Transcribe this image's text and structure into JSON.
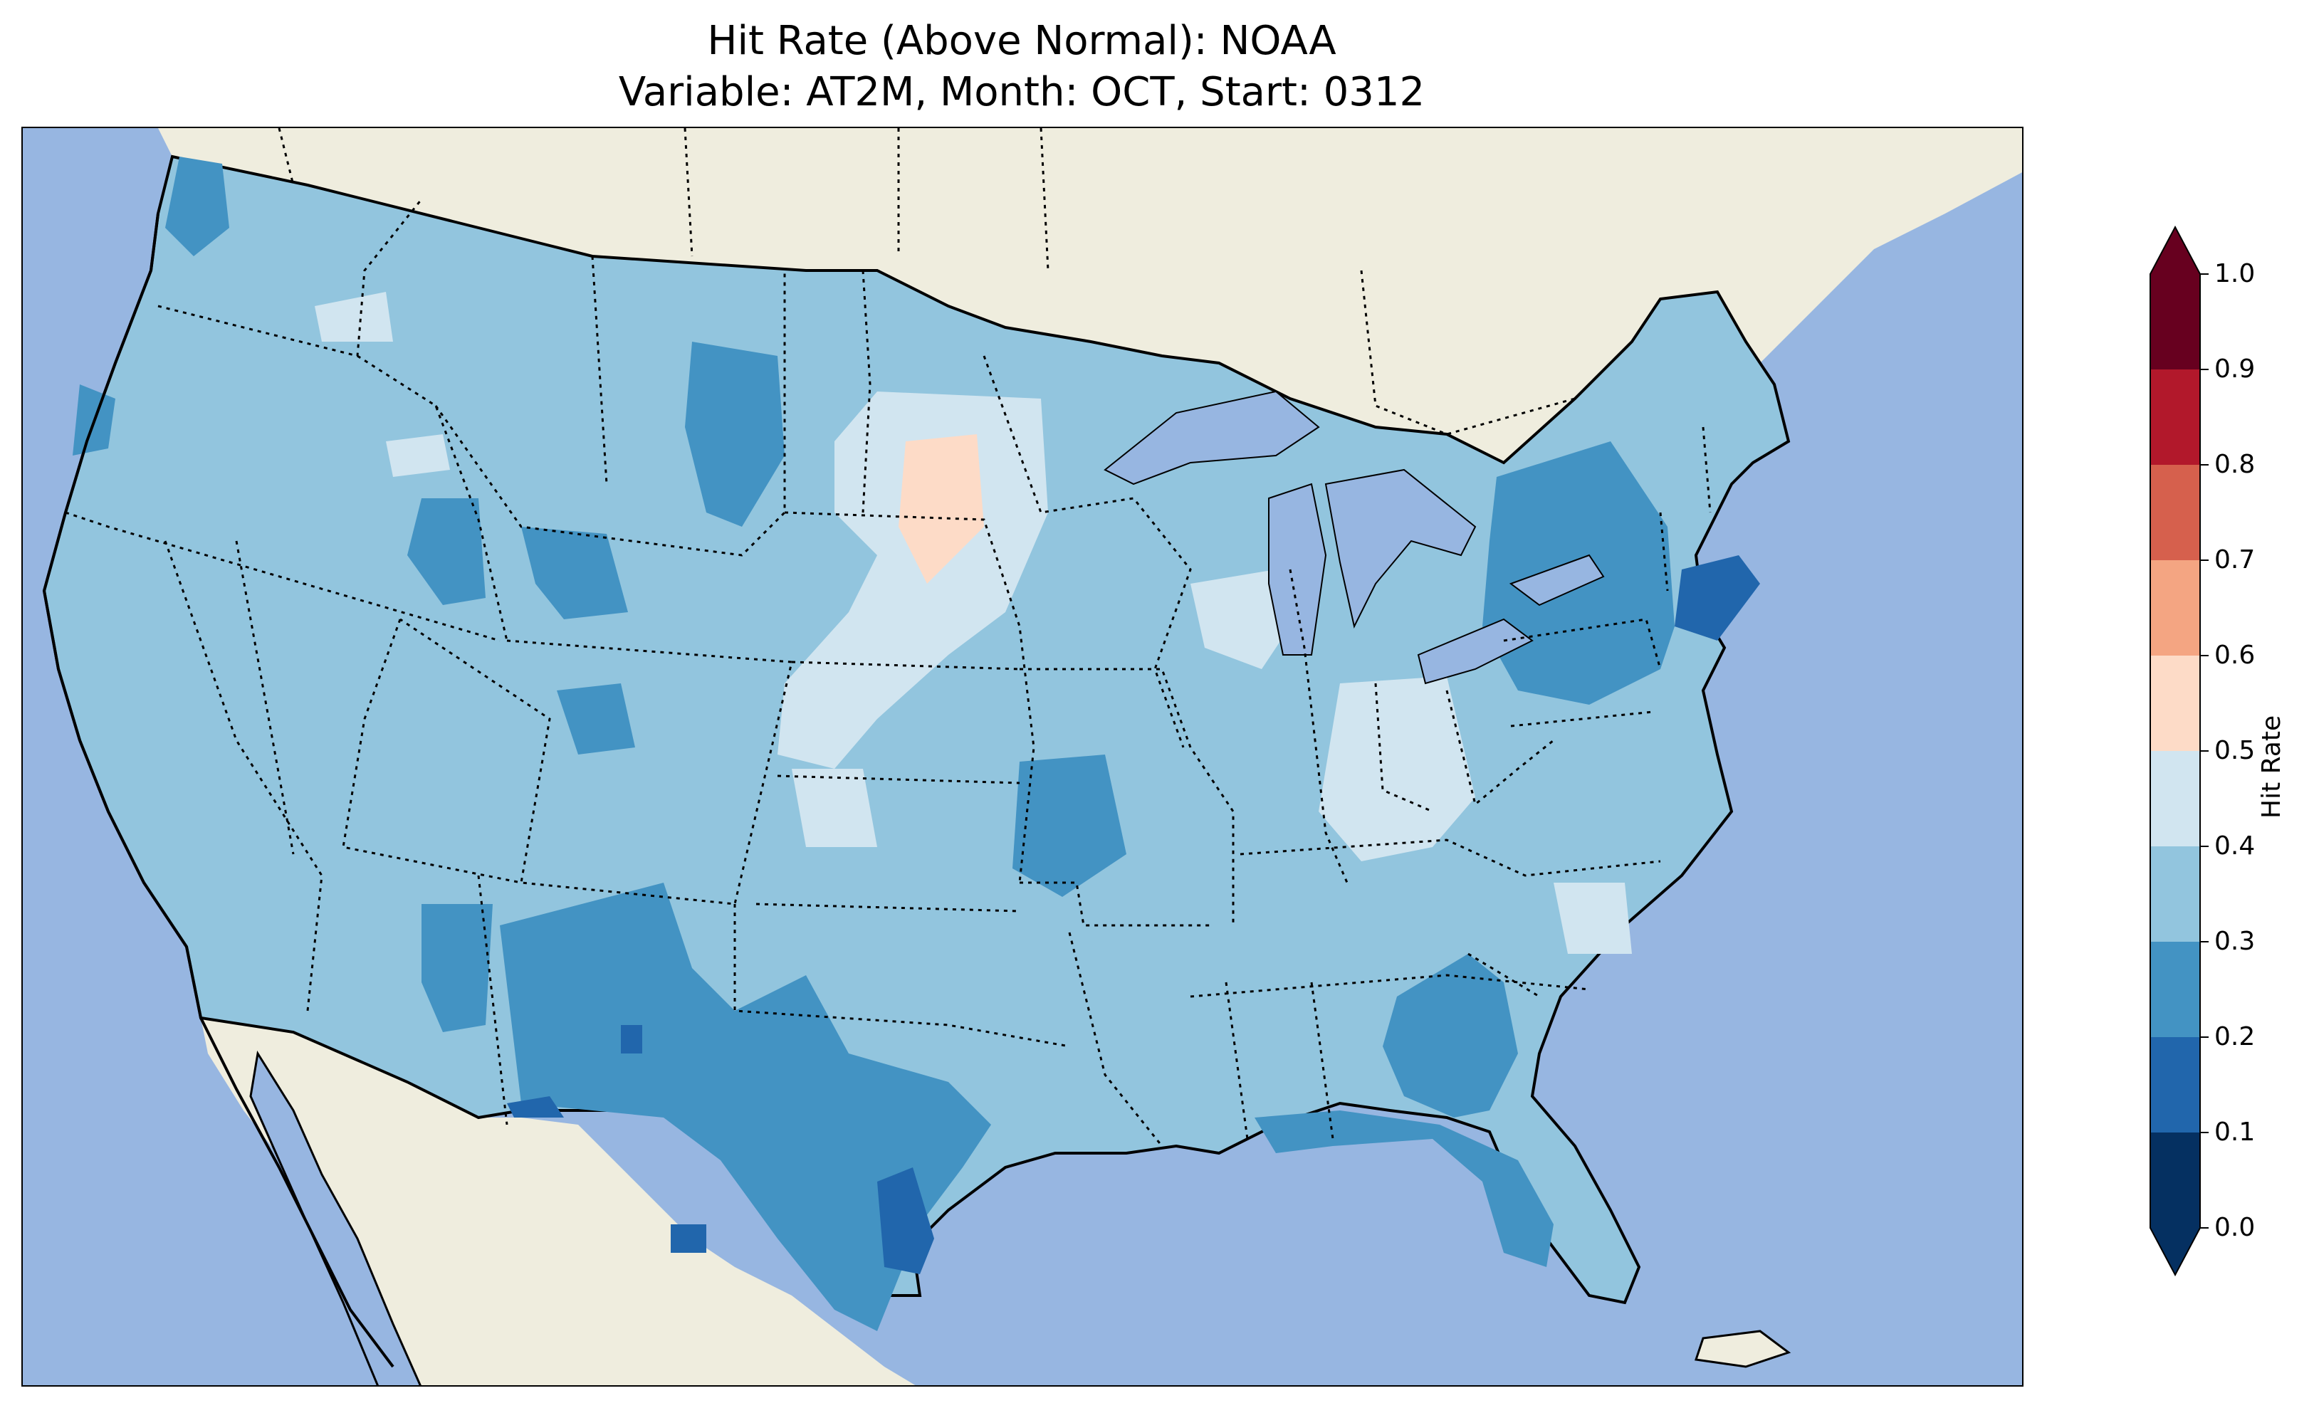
{
  "title": {
    "line1": "Hit Rate (Above Normal): NOAA",
    "line2": "Variable: AT2M, Month: OCT, Start: 0312"
  },
  "colors": {
    "ocean": "#97b6e1",
    "land": "#efedde",
    "lakes": "#97b6e1"
  },
  "colorbar": {
    "label": "Hit Rate",
    "ticks": [
      "0.0",
      "0.1",
      "0.2",
      "0.3",
      "0.4",
      "0.5",
      "0.6",
      "0.7",
      "0.8",
      "0.9",
      "1.0"
    ],
    "bins": [
      {
        "range": [
          0.0,
          0.1
        ],
        "color": "#053061"
      },
      {
        "range": [
          0.1,
          0.2
        ],
        "color": "#2166ac"
      },
      {
        "range": [
          0.2,
          0.3
        ],
        "color": "#4393c3"
      },
      {
        "range": [
          0.3,
          0.4
        ],
        "color": "#92c5de"
      },
      {
        "range": [
          0.4,
          0.5
        ],
        "color": "#d1e5f0"
      },
      {
        "range": [
          0.5,
          0.6
        ],
        "color": "#fddbc7"
      },
      {
        "range": [
          0.6,
          0.7
        ],
        "color": "#f4a582"
      },
      {
        "range": [
          0.7,
          0.8
        ],
        "color": "#d6604d"
      },
      {
        "range": [
          0.8,
          0.9
        ],
        "color": "#b2182b"
      },
      {
        "range": [
          0.9,
          1.0
        ],
        "color": "#67001f"
      }
    ],
    "extend": "both"
  }
}
